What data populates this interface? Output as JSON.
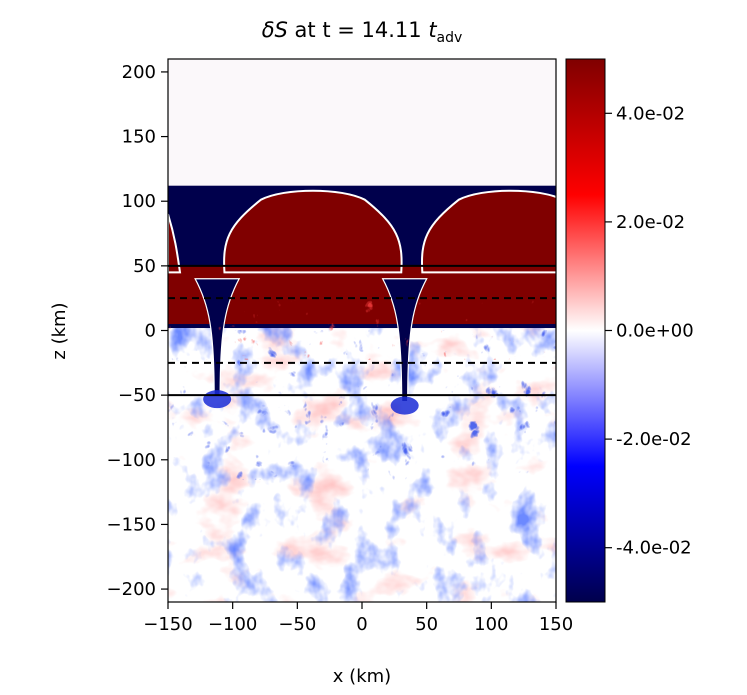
{
  "chart_data": {
    "type": "heatmap",
    "title": {
      "symbol": "δS",
      "middle": " at t = 14.11 ",
      "time_symbol": "t",
      "time_subscript": "adv"
    },
    "xlabel": "x (km)",
    "ylabel": "z (km)",
    "xlim": [
      -150,
      150
    ],
    "ylim": [
      -210,
      210
    ],
    "xticks": [
      -150,
      -100,
      -50,
      0,
      50,
      100,
      150
    ],
    "xtick_labels": [
      "−150",
      "−100",
      "−50",
      "0",
      "50",
      "100",
      "150"
    ],
    "yticks": [
      -200,
      -150,
      -100,
      -50,
      0,
      50,
      100,
      150,
      200
    ],
    "ytick_labels": [
      "−200",
      "−150",
      "−100",
      "−50",
      "0",
      "50",
      "100",
      "150",
      "200"
    ],
    "grid": false,
    "colorbar": {
      "colormap": "seismic",
      "range": [
        -0.05,
        0.05
      ],
      "ticks": [
        -0.04,
        -0.02,
        0.0,
        0.02,
        0.04
      ],
      "tick_labels": [
        "-4.0e-02",
        "-2.0e-02",
        "0.0e+00",
        "2.0e-02",
        "4.0e-02"
      ],
      "colors": {
        "low": "#00004c",
        "mid": "#ffffff",
        "high": "#800000"
      }
    },
    "reference_lines": [
      {
        "z": 50,
        "style": "solid"
      },
      {
        "z": 25,
        "style": "dashed"
      },
      {
        "z": -25,
        "style": "dashed"
      },
      {
        "z": -50,
        "style": "solid"
      }
    ],
    "field_regions": {
      "top_boundary_z": 112,
      "mixed_layer_bottom_z": 5,
      "mushrooms": [
        {
          "center_x": -38,
          "half_width": 73
        },
        {
          "center_x": 115,
          "half_width": 73
        }
      ],
      "downflow_plumes": [
        {
          "x": -112,
          "bottom_z": -50
        },
        {
          "x": 33,
          "bottom_z": -55
        }
      ]
    }
  }
}
